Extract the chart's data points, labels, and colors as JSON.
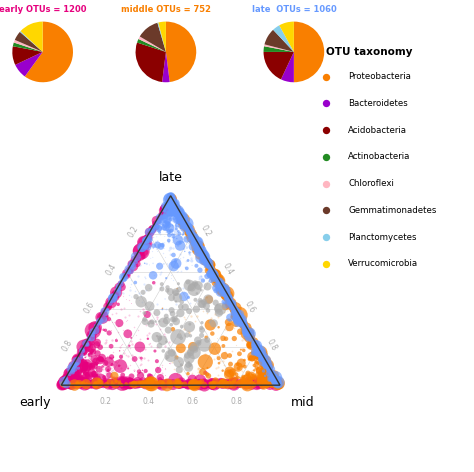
{
  "pie_early": {
    "label": "early OTUs = 1200",
    "label_color": "#e6007e",
    "slices": [
      0.6,
      0.08,
      0.1,
      0.02,
      0.015,
      0.05,
      0.005,
      0.13
    ],
    "colors": [
      "#f97f00",
      "#9900cc",
      "#8b0000",
      "#228B22",
      "#ffb6c1",
      "#6B3A2A",
      "#87CEEB",
      "#ffd700"
    ]
  },
  "pie_middle": {
    "label": "middle OTUs = 752",
    "label_color": "#f97f00",
    "slices": [
      0.48,
      0.04,
      0.28,
      0.02,
      0.015,
      0.12,
      0.005,
      0.04
    ],
    "colors": [
      "#f97f00",
      "#9900cc",
      "#8b0000",
      "#228B22",
      "#ffb6c1",
      "#6B3A2A",
      "#87CEEB",
      "#ffd700"
    ]
  },
  "pie_late": {
    "label": "late  OTUs = 1060",
    "label_color": "#6699ff",
    "slices": [
      0.5,
      0.07,
      0.18,
      0.03,
      0.01,
      0.09,
      0.04,
      0.08
    ],
    "colors": [
      "#f97f00",
      "#9900cc",
      "#8b0000",
      "#228B22",
      "#ffb6c1",
      "#6B3A2A",
      "#87CEEB",
      "#ffd700"
    ]
  },
  "taxonomy_colors": {
    "Proteobacteria": "#f97f00",
    "Bacteroidetes": "#9900cc",
    "Acidobacteria": "#8b0000",
    "Actinobacteria": "#228B22",
    "Chloroflexi": "#ffb6c1",
    "Gemmatimonadetes": "#6B3A2A",
    "Planctomycetes": "#87CEEB",
    "Verrucomicrobia": "#ffd700"
  },
  "scatter_colors": {
    "early": "#e6007e",
    "mid": "#f97f00",
    "late": "#6699ff",
    "gray": "#aaaaaa"
  },
  "gridline_color": "#d0d0d0",
  "axis_label_color": "#aaaaaa",
  "background_color": "#ffffff"
}
